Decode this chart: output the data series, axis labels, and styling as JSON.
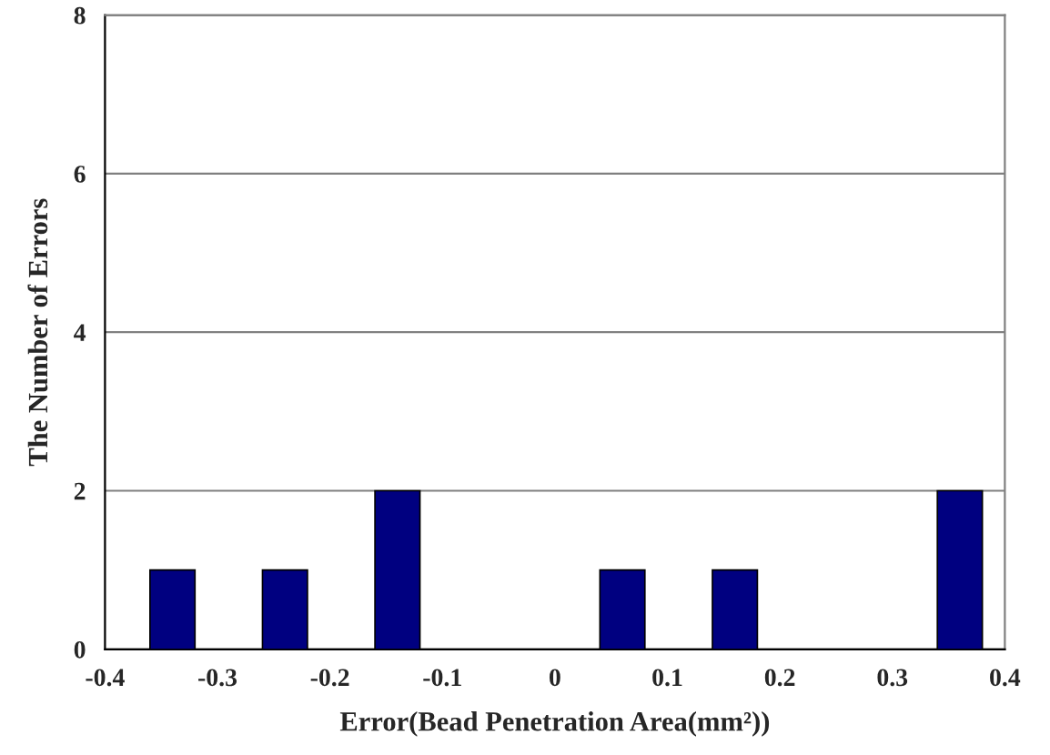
{
  "chart_data": {
    "type": "bar",
    "xlabel": "Error(Bead Penetration Area(mm²))",
    "ylabel": "The Number of Errors",
    "x": [
      -0.34,
      -0.24,
      -0.14,
      0.06,
      0.16,
      0.36
    ],
    "values": [
      1,
      1,
      2,
      1,
      1,
      2
    ],
    "color": "#000080",
    "xlim": [
      -0.4,
      0.4
    ],
    "xticks": [
      -0.4,
      -0.3,
      -0.2,
      -0.1,
      0,
      0.1,
      0.2,
      0.3,
      0.4
    ],
    "ylim": [
      0,
      8
    ],
    "yticks": [
      0,
      2,
      4,
      6,
      8
    ],
    "grid": "y",
    "legend": false
  }
}
